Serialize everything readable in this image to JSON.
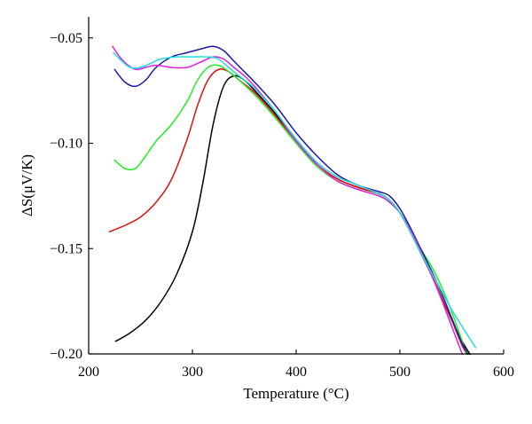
{
  "chart_data": {
    "type": "line",
    "xlabel": "Temperature (°C)",
    "ylabel": "ΔS(μV/K)",
    "xlim": [
      200,
      600
    ],
    "ylim": [
      -0.2,
      -0.04
    ],
    "xticks": [
      200,
      300,
      400,
      500,
      600
    ],
    "yticks": [
      -0.05,
      -0.1,
      -0.15,
      -0.2
    ],
    "xtick_labels": [
      "200",
      "300",
      "400",
      "500",
      "600"
    ],
    "ytick_labels": [
      "−0.05",
      "−0.10",
      "−0.15",
      "−0.20"
    ],
    "grid": false,
    "legend": "none",
    "series": [
      {
        "color": "#000000",
        "x": [
          226,
          240,
          255,
          270,
          285,
          300,
          310,
          320,
          330,
          340,
          350,
          360,
          380,
          400,
          420,
          440,
          460,
          480,
          490,
          500,
          510,
          520,
          530,
          540,
          550,
          560,
          570
        ],
        "y": [
          -0.194,
          -0.19,
          -0.184,
          -0.175,
          -0.162,
          -0.142,
          -0.119,
          -0.091,
          -0.073,
          -0.068,
          -0.07,
          -0.075,
          -0.086,
          -0.099,
          -0.11,
          -0.117,
          -0.121,
          -0.124,
          -0.127,
          -0.133,
          -0.142,
          -0.152,
          -0.162,
          -0.173,
          -0.184,
          -0.194,
          -0.202
        ]
      },
      {
        "color": "#dd1111",
        "x": [
          220,
          235,
          250,
          265,
          280,
          295,
          305,
          315,
          325,
          335,
          345,
          360,
          380,
          400,
          420,
          440,
          460,
          480,
          490,
          500,
          510,
          520,
          530,
          540,
          550,
          560,
          568
        ],
        "y": [
          -0.142,
          -0.139,
          -0.135,
          -0.128,
          -0.117,
          -0.098,
          -0.082,
          -0.07,
          -0.065,
          -0.066,
          -0.07,
          -0.076,
          -0.087,
          -0.099,
          -0.11,
          -0.117,
          -0.121,
          -0.124,
          -0.127,
          -0.133,
          -0.142,
          -0.152,
          -0.162,
          -0.173,
          -0.184,
          -0.196,
          -0.203
        ]
      },
      {
        "color": "#22ee22",
        "x": [
          225,
          235,
          245,
          255,
          265,
          280,
          295,
          305,
          315,
          325,
          335,
          345,
          360,
          380,
          400,
          420,
          440,
          460,
          480,
          490,
          500,
          510,
          520,
          530,
          540,
          550,
          560,
          566
        ],
        "y": [
          -0.108,
          -0.112,
          -0.112,
          -0.106,
          -0.099,
          -0.091,
          -0.08,
          -0.07,
          -0.064,
          -0.063,
          -0.066,
          -0.07,
          -0.077,
          -0.088,
          -0.1,
          -0.111,
          -0.118,
          -0.122,
          -0.125,
          -0.128,
          -0.133,
          -0.141,
          -0.15,
          -0.158,
          -0.168,
          -0.18,
          -0.194,
          -0.203
        ]
      },
      {
        "color": "#1a1aa6",
        "x": [
          225,
          235,
          245,
          255,
          265,
          280,
          295,
          310,
          320,
          330,
          340,
          350,
          360,
          380,
          400,
          420,
          440,
          460,
          480,
          490,
          500,
          510,
          520,
          530,
          540,
          550,
          560,
          569
        ],
        "y": [
          -0.065,
          -0.071,
          -0.073,
          -0.07,
          -0.064,
          -0.059,
          -0.057,
          -0.055,
          -0.054,
          -0.056,
          -0.061,
          -0.066,
          -0.071,
          -0.082,
          -0.095,
          -0.106,
          -0.115,
          -0.12,
          -0.123,
          -0.125,
          -0.131,
          -0.14,
          -0.15,
          -0.16,
          -0.171,
          -0.183,
          -0.195,
          -0.203
        ]
      },
      {
        "color": "#dd22dd",
        "x": [
          223,
          230,
          238,
          246,
          255,
          265,
          280,
          295,
          310,
          320,
          330,
          340,
          350,
          360,
          380,
          400,
          420,
          440,
          460,
          480,
          490,
          500,
          510,
          520,
          530,
          540,
          550,
          560,
          563
        ],
        "y": [
          -0.054,
          -0.059,
          -0.063,
          -0.065,
          -0.064,
          -0.063,
          -0.064,
          -0.064,
          -0.061,
          -0.059,
          -0.06,
          -0.064,
          -0.068,
          -0.073,
          -0.085,
          -0.099,
          -0.11,
          -0.118,
          -0.122,
          -0.125,
          -0.128,
          -0.133,
          -0.141,
          -0.151,
          -0.162,
          -0.174,
          -0.187,
          -0.2,
          -0.204
        ]
      },
      {
        "color": "#22dddd",
        "x": [
          224,
          232,
          240,
          250,
          260,
          270,
          285,
          300,
          315,
          325,
          335,
          345,
          360,
          380,
          400,
          420,
          440,
          460,
          480,
          490,
          500,
          510,
          520,
          530,
          540,
          550,
          560,
          573
        ],
        "y": [
          -0.057,
          -0.061,
          -0.064,
          -0.064,
          -0.062,
          -0.06,
          -0.059,
          -0.059,
          -0.059,
          -0.06,
          -0.064,
          -0.068,
          -0.074,
          -0.085,
          -0.098,
          -0.109,
          -0.116,
          -0.12,
          -0.124,
          -0.127,
          -0.133,
          -0.142,
          -0.152,
          -0.161,
          -0.17,
          -0.179,
          -0.187,
          -0.197
        ]
      }
    ]
  }
}
